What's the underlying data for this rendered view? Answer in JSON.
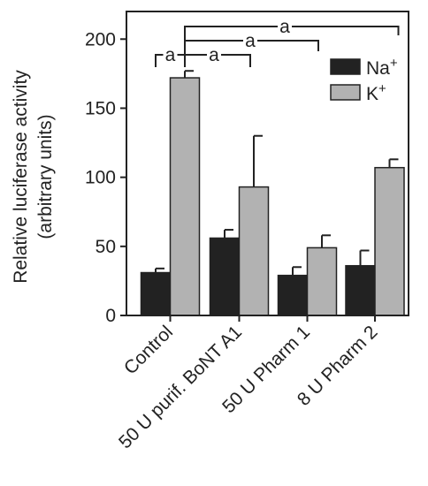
{
  "chart_data": {
    "type": "bar",
    "title": "",
    "xlabel": "",
    "ylabel": "Relative luciferase activity",
    "ylabel_unit": "(arbitrary units)",
    "categories": [
      "Control",
      "50 U  purif. BoNT A1",
      "50 U Pharm 1",
      "8 U Pharm 2"
    ],
    "yticks": [
      "0",
      "50",
      "100",
      "150",
      "200"
    ],
    "ylim": [
      0,
      220
    ],
    "series": [
      {
        "name": "Na",
        "superscript": "+",
        "color": "#222222",
        "values": [
          31,
          56,
          29,
          36
        ],
        "errors": [
          3,
          6,
          6,
          11
        ]
      },
      {
        "name": "K",
        "superscript": "+",
        "color": "#b2b2b2",
        "values": [
          172,
          93,
          49,
          107
        ],
        "errors": [
          5,
          37,
          9,
          6
        ]
      }
    ],
    "significance": [
      {
        "label": "a",
        "from": "Control",
        "to": "Control"
      },
      {
        "label": "a",
        "from": "Control",
        "to": "50 U  purif. BoNT A1"
      },
      {
        "label": "a",
        "from": "Control",
        "to": "50 U Pharm 1"
      },
      {
        "label": "a",
        "from": "Control",
        "to": "8 U Pharm 2"
      }
    ],
    "legend_position": "top-right",
    "grid": false
  }
}
